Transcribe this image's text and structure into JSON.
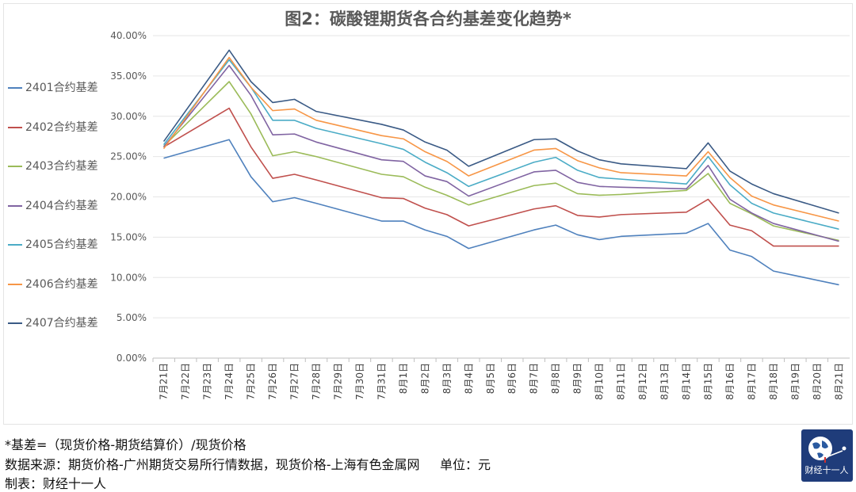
{
  "chart_data": {
    "type": "line",
    "title": "图2：碳酸锂期货各合约基差变化趋势*",
    "xlabel": "",
    "ylabel": "",
    "ylim": [
      0,
      40
    ],
    "yticks": [
      "0.00%",
      "5.00%",
      "10.00%",
      "15.00%",
      "20.00%",
      "25.00%",
      "30.00%",
      "35.00%",
      "40.00%"
    ],
    "categories": [
      "7月21日",
      "7月22日",
      "7月23日",
      "7月24日",
      "7月25日",
      "7月26日",
      "7月27日",
      "7月28日",
      "7月29日",
      "7月30日",
      "7月31日",
      "8月1日",
      "8月2日",
      "8月3日",
      "8月4日",
      "8月5日",
      "8月6日",
      "8月7日",
      "8月8日",
      "8月9日",
      "8月10日",
      "8月11日",
      "8月12日",
      "8月13日",
      "8月14日",
      "8月15日",
      "8月16日",
      "8月17日",
      "8月18日",
      "8月19日",
      "8月20日",
      "8月21日"
    ],
    "x": [
      "7月21日",
      "7月24日",
      "7月25日",
      "7月26日",
      "7月27日",
      "7月28日",
      "7月31日",
      "8月1日",
      "8月2日",
      "8月3日",
      "8月4日",
      "8月7日",
      "8月8日",
      "8月9日",
      "8月10日",
      "8月11日",
      "8月14日",
      "8月15日",
      "8月16日",
      "8月17日",
      "8月18日",
      "8月21日"
    ],
    "grid": true,
    "legend": "left",
    "series": [
      {
        "name": "2401合约基差",
        "color": "#4f81bd",
        "values": [
          24.8,
          27.1,
          22.5,
          19.4,
          19.9,
          19.2,
          17.0,
          17.0,
          15.9,
          15.1,
          13.6,
          15.9,
          16.5,
          15.3,
          14.7,
          15.1,
          15.5,
          16.7,
          13.4,
          12.6,
          10.8,
          9.1
        ]
      },
      {
        "name": "2402合约基差",
        "color": "#c0504d",
        "values": [
          26.2,
          31.0,
          26.2,
          22.3,
          22.8,
          22.1,
          19.9,
          19.8,
          18.6,
          17.8,
          16.4,
          18.5,
          18.9,
          17.7,
          17.5,
          17.8,
          18.1,
          19.7,
          16.5,
          15.8,
          13.9,
          13.9
        ]
      },
      {
        "name": "2403合约基差",
        "color": "#9bbb59",
        "values": [
          26.3,
          34.3,
          30.3,
          25.1,
          25.6,
          25.0,
          22.8,
          22.5,
          21.2,
          20.2,
          19.0,
          21.4,
          21.7,
          20.4,
          20.2,
          20.3,
          20.8,
          22.9,
          19.2,
          17.9,
          16.4,
          14.6
        ]
      },
      {
        "name": "2404合约基差",
        "color": "#8064a2",
        "values": [
          26.2,
          36.3,
          32.6,
          27.7,
          27.8,
          26.8,
          24.6,
          24.4,
          22.6,
          21.9,
          20.1,
          23.1,
          23.3,
          21.8,
          21.3,
          21.2,
          21.0,
          23.9,
          19.7,
          18.0,
          16.7,
          14.5
        ]
      },
      {
        "name": "2405合约基差",
        "color": "#4bacc6",
        "values": [
          26.5,
          37.0,
          33.6,
          29.5,
          29.5,
          28.5,
          26.6,
          25.9,
          24.3,
          23.0,
          21.3,
          24.3,
          24.9,
          23.3,
          22.4,
          22.2,
          21.6,
          25.0,
          21.5,
          19.2,
          18.0,
          16.0
        ]
      },
      {
        "name": "2406合约基差",
        "color": "#f79646",
        "values": [
          26.0,
          37.3,
          33.6,
          30.7,
          30.9,
          29.5,
          27.6,
          27.2,
          25.6,
          24.4,
          22.6,
          25.8,
          26.0,
          24.5,
          23.6,
          23.0,
          22.6,
          25.6,
          22.4,
          20.1,
          19.0,
          17.0
        ]
      },
      {
        "name": "2407合约基差",
        "color": "#3a5a85",
        "values": [
          26.9,
          38.2,
          34.3,
          31.7,
          32.1,
          30.6,
          29.0,
          28.3,
          26.8,
          25.8,
          23.8,
          27.1,
          27.2,
          25.7,
          24.6,
          24.1,
          23.5,
          26.7,
          23.2,
          21.6,
          20.4,
          18.0
        ]
      }
    ]
  },
  "footer": {
    "note": "*基差=（现货价格-期货结算价）/现货价格",
    "source": "数据来源：期货价格-广州期货交易所行情数据，现货价格-上海有色金属网     单位：元",
    "maker": "制表：财经十一人"
  },
  "logo": {
    "text": "财经十一人"
  }
}
